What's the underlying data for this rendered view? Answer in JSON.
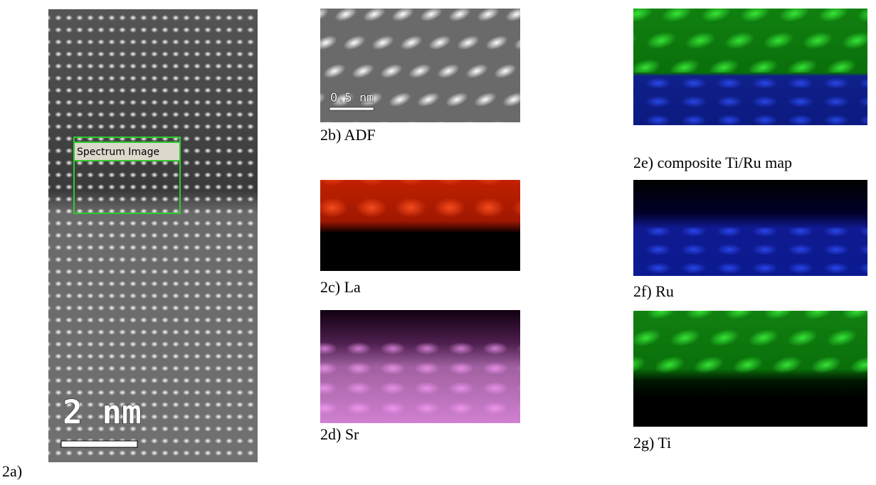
{
  "panels": [
    {
      "caption": "2a)",
      "box_label": "Spectrum Image",
      "scale_bar": "2 nm"
    },
    {
      "caption": "2b) ADF",
      "scale_bar": "0.5 nm"
    },
    {
      "caption": "2c) La"
    },
    {
      "caption": "2d) Sr"
    },
    {
      "caption": "2e) composite Ti/Ru map"
    },
    {
      "caption": "2f) Ru"
    },
    {
      "caption": "2g) Ti"
    }
  ]
}
